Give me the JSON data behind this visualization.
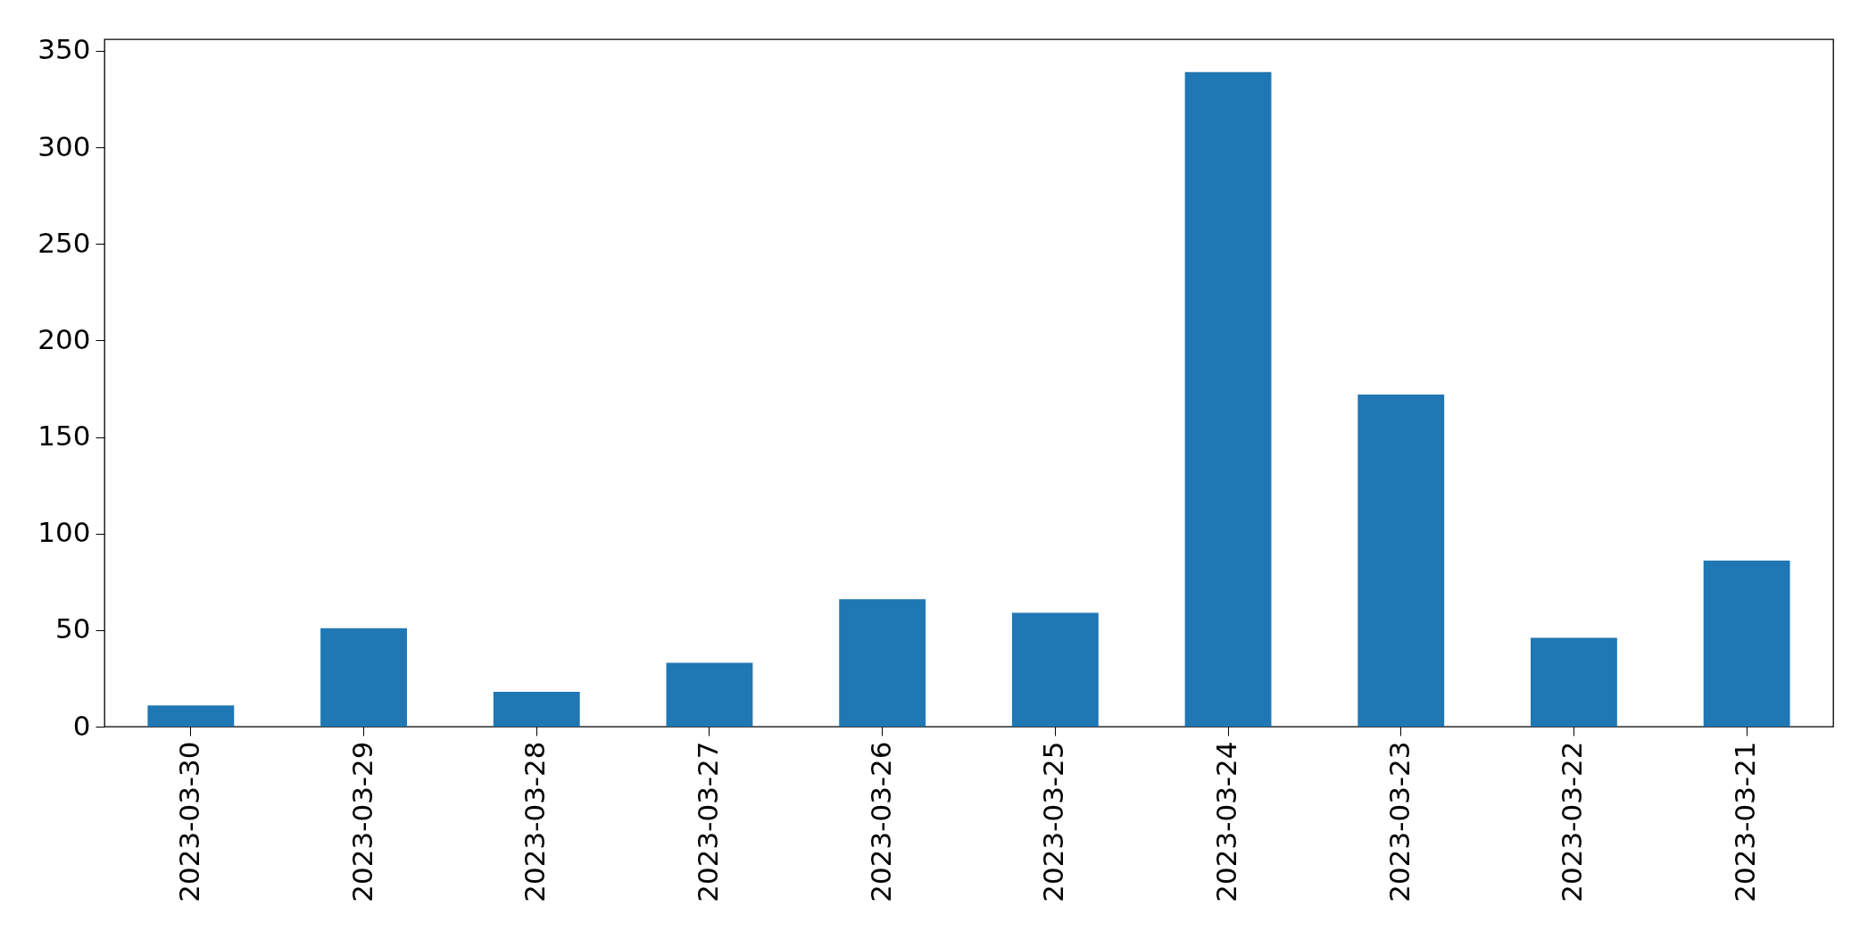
{
  "chart_data": {
    "type": "bar",
    "categories": [
      "2023-03-30",
      "2023-03-29",
      "2023-03-28",
      "2023-03-27",
      "2023-03-26",
      "2023-03-25",
      "2023-03-24",
      "2023-03-23",
      "2023-03-22",
      "2023-03-21"
    ],
    "values": [
      11,
      51,
      18,
      33,
      66,
      59,
      339,
      172,
      46,
      86
    ],
    "color": "#1f77b4",
    "ylim": [
      0,
      356
    ],
    "yticks": [
      0,
      50,
      100,
      150,
      200,
      250,
      300,
      350
    ],
    "grid": false
  }
}
